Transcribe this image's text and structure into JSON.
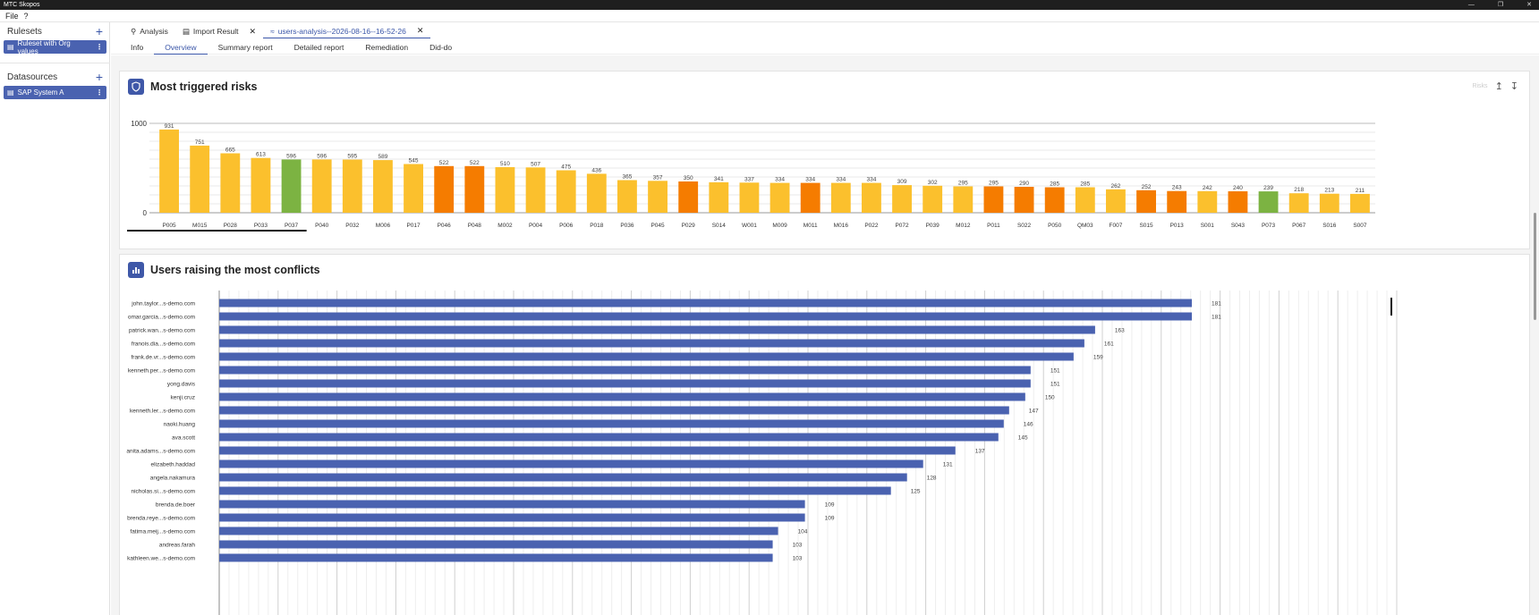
{
  "app": {
    "title": "MTC Skopos"
  },
  "menu": [
    "File",
    "?"
  ],
  "sidebar": {
    "rulesets_label": "Rulesets",
    "rulesets_items": [
      "Ruleset with Org values"
    ],
    "datasources_label": "Datasources",
    "datasources_items": [
      "SAP System A"
    ]
  },
  "tabs": [
    {
      "label": "Analysis",
      "icon": "search-icon"
    },
    {
      "label": "Import Result",
      "icon": "import-icon"
    },
    {
      "label": "users-analysis--2026-08-16--16-52-26",
      "icon": "chart-icon"
    }
  ],
  "subtabs": [
    "Info",
    "Overview",
    "Summary report",
    "Detailed report",
    "Remediation",
    "Did-do"
  ],
  "active_subtab": "Overview",
  "card1": {
    "title": "Most triggered risks",
    "tools_label": "Risks"
  },
  "card2": {
    "title": "Users raising the most conflicts"
  },
  "colors": {
    "yellow": "#fbc02d",
    "orange": "#f57c00",
    "green": "#7cb342",
    "blue": "#4a62b0"
  },
  "chart_data": [
    {
      "type": "bar",
      "ylim": [
        0,
        1000
      ],
      "yticks": [
        "0",
        "1000"
      ],
      "categories": [
        "P005",
        "M015",
        "P028",
        "P033",
        "P037",
        "P040",
        "P032",
        "M006",
        "P017",
        "P046",
        "P048",
        "M002",
        "P004",
        "P006",
        "P018",
        "P036",
        "P045",
        "P029",
        "S014",
        "W001",
        "M009",
        "M011",
        "M016",
        "P022",
        "P072",
        "P039",
        "M012",
        "P011",
        "S022",
        "P050",
        "QM03",
        "F007",
        "S015",
        "P013",
        "S001",
        "S043",
        "P073",
        "P067",
        "S016",
        "S007"
      ],
      "values": [
        931,
        751,
        665,
        613,
        596,
        596,
        595,
        589,
        545,
        522,
        522,
        510,
        507,
        475,
        436,
        365,
        357,
        350,
        341,
        337,
        334,
        334,
        334,
        334,
        309,
        302,
        295,
        295,
        290,
        285,
        285,
        262,
        252,
        243,
        242,
        240,
        239,
        218,
        213,
        211
      ],
      "bar_colors": [
        "yellow",
        "yellow",
        "yellow",
        "yellow",
        "green",
        "yellow",
        "yellow",
        "yellow",
        "yellow",
        "orange",
        "orange",
        "yellow",
        "yellow",
        "yellow",
        "yellow",
        "yellow",
        "yellow",
        "orange",
        "yellow",
        "yellow",
        "yellow",
        "orange",
        "yellow",
        "yellow",
        "yellow",
        "yellow",
        "yellow",
        "orange",
        "orange",
        "orange",
        "yellow",
        "yellow",
        "orange",
        "orange",
        "yellow",
        "orange",
        "green",
        "yellow",
        "yellow",
        "yellow"
      ]
    },
    {
      "type": "bar",
      "orientation": "horizontal",
      "categories": [
        "john.taylor...s-demo.com",
        "omar.garcia...s-demo.com",
        "patrick.wan...s-demo.com",
        "franois.dia...s-demo.com",
        "frank.de.vr...s-demo.com",
        "kenneth.per...s-demo.com",
        "yong.davis",
        "kenji.cruz",
        "kenneth.ler...s-demo.com",
        "naoki.huang",
        "ava.scott",
        "anita.adams...s-demo.com",
        "elizabeth.haddad",
        "angela.nakamura",
        "nicholas.si...s-demo.com",
        "brenda.de.boer",
        "brenda.reye...s-demo.com",
        "fatima.meij...s-demo.com",
        "andreas.farah",
        "kathleen.we...s-demo.com"
      ],
      "values": [
        181,
        181,
        163,
        161,
        159,
        151,
        151,
        150,
        147,
        146,
        145,
        137,
        131,
        128,
        125,
        109,
        109,
        104,
        103,
        103
      ],
      "xlim": [
        0,
        220
      ]
    }
  ]
}
